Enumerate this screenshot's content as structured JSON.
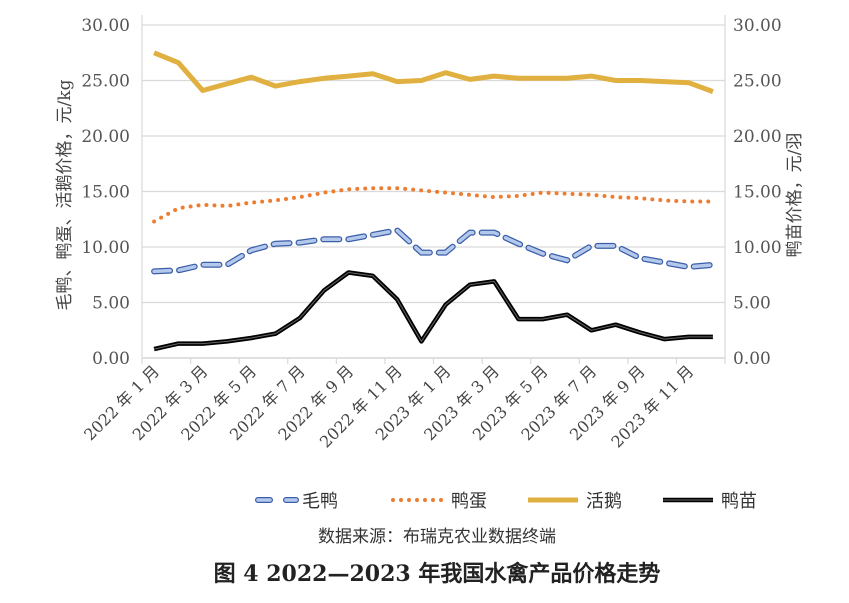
{
  "chart_data": {
    "type": "line",
    "title": "图 4  2022—2023 年我国水禽产品价格走势",
    "source": "数据来源：布瑞克农业数据终端",
    "ylabel_left": "毛鸭、鸭蛋、活鹅价格，元/kg",
    "ylabel_right": "鸭苗价格，元/羽",
    "ylim_left": [
      0,
      30
    ],
    "ylim_right": [
      0,
      30
    ],
    "yticks": [
      "0.00",
      "5.00",
      "10.00",
      "15.00",
      "20.00",
      "25.00",
      "30.00"
    ],
    "grid": true,
    "legend_position": "bottom",
    "x": [
      "2022-01",
      "2022-02",
      "2022-03",
      "2022-04",
      "2022-05",
      "2022-06",
      "2022-07",
      "2022-08",
      "2022-09",
      "2022-10",
      "2022-11",
      "2022-12",
      "2023-01",
      "2023-02",
      "2023-03",
      "2023-04",
      "2023-05",
      "2023-06",
      "2023-07",
      "2023-08",
      "2023-09",
      "2023-10",
      "2023-11",
      "2023-12"
    ],
    "xtick_labels": [
      "2022 年 1 月",
      "2022 年 3 月",
      "2022 年 5 月",
      "2022 年 7 月",
      "2022 年 9 月",
      "2022 年 11 月",
      "2023 年 1 月",
      "2023 年 3 月",
      "2023 年 5 月",
      "2023 年 7 月",
      "2023 年 9 月",
      "2023 年 11 月"
    ],
    "series": [
      {
        "name": "毛鸭",
        "axis": "left",
        "style": "dash",
        "color": "#4472c4",
        "values": [
          7.8,
          7.9,
          8.4,
          8.4,
          9.7,
          10.3,
          10.4,
          10.7,
          10.7,
          11.1,
          11.5,
          9.5,
          9.5,
          11.3,
          11.3,
          10.3,
          9.4,
          8.8,
          10.1,
          10.1,
          9.0,
          8.6,
          8.2,
          8.4
        ]
      },
      {
        "name": "鸭蛋",
        "axis": "left",
        "style": "dot",
        "color": "#ed7d31",
        "values": [
          12.3,
          13.5,
          13.8,
          13.7,
          14.0,
          14.2,
          14.5,
          14.9,
          15.2,
          15.3,
          15.3,
          15.1,
          14.9,
          14.7,
          14.5,
          14.6,
          14.9,
          14.8,
          14.7,
          14.5,
          14.4,
          14.2,
          14.1,
          14.1
        ]
      },
      {
        "name": "活鹅",
        "axis": "left",
        "style": "solid",
        "color": "#e0b040",
        "values": [
          27.5,
          26.6,
          24.1,
          24.7,
          25.3,
          24.5,
          24.9,
          25.2,
          25.4,
          25.6,
          24.9,
          25.0,
          25.7,
          25.1,
          25.4,
          25.2,
          25.2,
          25.2,
          25.4,
          25.0,
          25.0,
          24.9,
          24.8,
          24.0
        ]
      },
      {
        "name": "鸭苗",
        "axis": "right",
        "style": "solid",
        "color": "#000000",
        "values": [
          0.8,
          1.3,
          1.3,
          1.5,
          1.8,
          2.2,
          3.6,
          6.1,
          7.7,
          7.4,
          5.3,
          1.5,
          4.8,
          6.6,
          6.9,
          3.5,
          3.5,
          3.9,
          2.5,
          3.0,
          2.3,
          1.7,
          1.9,
          1.9
        ]
      }
    ]
  }
}
